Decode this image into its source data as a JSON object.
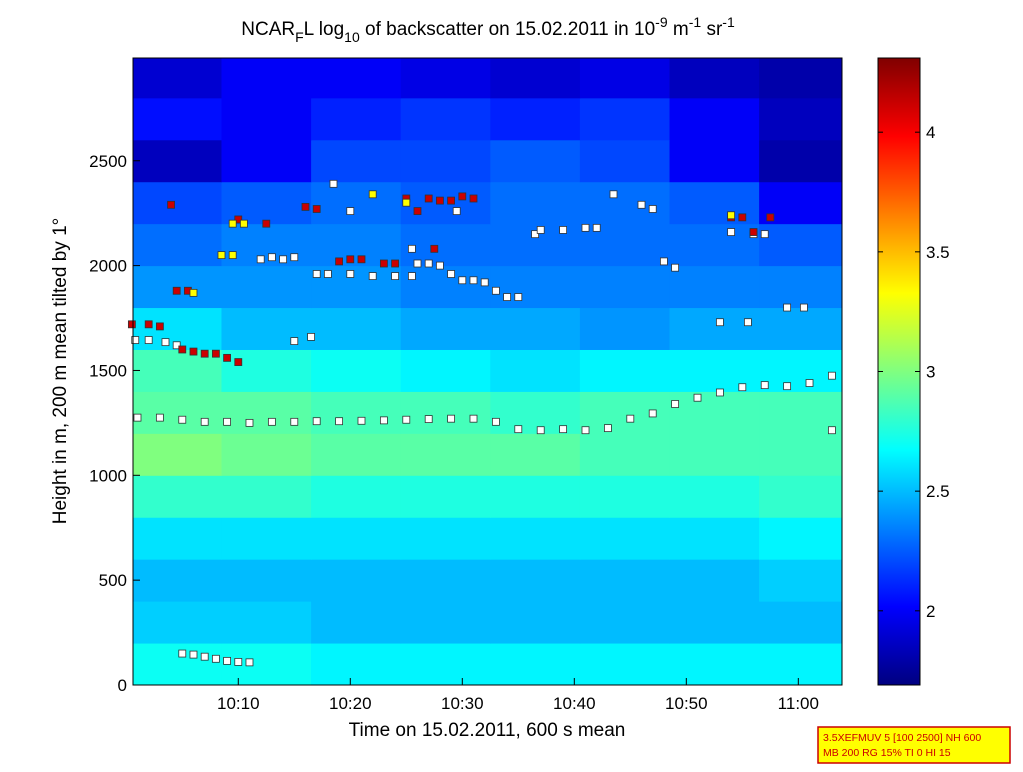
{
  "chart_data": {
    "type": "heatmap",
    "title": [
      "NCAR",
      "F",
      "L log",
      "10",
      " of backscatter on 15.02.2011 in 10",
      "-9",
      " m",
      "-1",
      " sr",
      "-1"
    ],
    "x_label": "Time on 15.02.2011, 600 s mean",
    "y_label": "Height in m, 200 m mean tilted by 1°",
    "xlim": [
      0.6,
      63.9
    ],
    "ylim": [
      0,
      2990
    ],
    "xticks": [
      {
        "value": 10,
        "label": "10:10"
      },
      {
        "value": 20,
        "label": "10:20"
      },
      {
        "value": 30,
        "label": "10:30"
      },
      {
        "value": 40,
        "label": "10:40"
      },
      {
        "value": 50,
        "label": "10:50"
      },
      {
        "value": 60,
        "label": "11:00"
      }
    ],
    "yticks": [
      0,
      500,
      1000,
      1500,
      2000,
      2500
    ],
    "colormap": "jet",
    "clim": [
      1.69,
      4.31
    ],
    "cticks": [
      2,
      2.5,
      3,
      3.5,
      4
    ],
    "x_bins": [
      0.6,
      8.5,
      16.5,
      24.5,
      32.5,
      40.5,
      48.5,
      56.5,
      63.9
    ],
    "y_bins": [
      0,
      200,
      400,
      600,
      800,
      1000,
      1200,
      1400,
      1600,
      1800,
      2000,
      2200,
      2400,
      2600,
      2800,
      2990
    ],
    "z": [
      [
        2.7,
        2.7,
        2.65,
        2.65,
        2.65,
        2.65,
        2.65,
        2.65
      ],
      [
        2.55,
        2.55,
        2.5,
        2.5,
        2.5,
        2.5,
        2.5,
        2.5
      ],
      [
        2.5,
        2.5,
        2.5,
        2.5,
        2.5,
        2.5,
        2.5,
        2.55
      ],
      [
        2.6,
        2.6,
        2.6,
        2.6,
        2.6,
        2.6,
        2.6,
        2.65
      ],
      [
        2.8,
        2.8,
        2.75,
        2.75,
        2.75,
        2.75,
        2.75,
        2.8
      ],
      [
        3.0,
        2.95,
        2.9,
        2.9,
        2.9,
        2.85,
        2.85,
        2.85
      ],
      [
        2.9,
        2.9,
        2.85,
        2.85,
        2.8,
        2.85,
        2.85,
        2.85
      ],
      [
        2.85,
        2.75,
        2.7,
        2.65,
        2.6,
        2.65,
        2.65,
        2.65
      ],
      [
        2.6,
        2.5,
        2.5,
        2.45,
        2.45,
        2.4,
        2.45,
        2.45
      ],
      [
        2.4,
        2.4,
        2.4,
        2.35,
        2.35,
        2.35,
        2.35,
        2.35
      ],
      [
        2.3,
        2.35,
        2.35,
        2.3,
        2.3,
        2.3,
        2.3,
        2.25
      ],
      [
        2.2,
        2.25,
        2.3,
        2.25,
        2.3,
        2.3,
        2.25,
        2.0
      ],
      [
        1.85,
        2.0,
        2.2,
        2.2,
        2.25,
        2.2,
        2.0,
        1.8
      ],
      [
        2.05,
        2.0,
        2.1,
        2.15,
        2.1,
        2.15,
        2.0,
        1.85
      ],
      [
        1.9,
        2.0,
        2.0,
        1.95,
        1.9,
        1.95,
        1.85,
        1.8
      ]
    ],
    "series": [
      {
        "color": "#ffffff",
        "x": [
          1,
          3,
          5,
          7,
          9,
          11,
          13,
          15,
          17,
          19,
          21,
          23,
          25,
          27,
          29,
          31,
          33,
          35,
          37,
          39,
          41,
          43,
          45,
          47,
          49,
          51,
          53,
          55,
          57,
          59,
          61,
          63,
          63,
          0.8,
          2,
          3.5,
          4.5,
          5,
          6,
          7,
          8,
          9,
          10,
          11,
          12,
          13,
          14,
          15,
          17,
          18,
          20,
          22,
          24,
          25.5,
          26,
          27,
          28,
          29,
          30,
          31,
          32,
          33,
          34,
          35,
          36.5,
          37,
          39,
          41,
          42,
          43.5,
          46,
          47,
          48,
          49,
          53,
          55.5,
          54,
          56,
          57,
          59,
          60.5,
          15,
          16.5,
          18.5,
          20,
          25.5,
          29.5
        ],
        "values": [
          1275,
          1275,
          1265,
          1255,
          1255,
          1250,
          1255,
          1255,
          1258,
          1258,
          1260,
          1262,
          1265,
          1268,
          1270,
          1270,
          1255,
          1220,
          1215,
          1220,
          1215,
          1225,
          1270,
          1295,
          1340,
          1370,
          1395,
          1420,
          1430,
          1425,
          1440,
          1475,
          1215,
          1645,
          1645,
          1635,
          1620,
          150,
          145,
          135,
          125,
          115,
          110,
          108,
          2030,
          2040,
          2030,
          2040,
          1960,
          1960,
          1960,
          1950,
          1950,
          1950,
          2010,
          2010,
          2000,
          1960,
          1930,
          1930,
          1920,
          1880,
          1850,
          1850,
          2150,
          2170,
          2170,
          2180,
          2180,
          2340,
          2290,
          2270,
          2020,
          1990,
          1730,
          1730,
          2160,
          2150,
          2150,
          1800,
          1800,
          1640,
          1660,
          2390,
          2260,
          2080,
          2260
        ]
      },
      {
        "color": "#cc0000",
        "x": [
          0.5,
          2,
          3,
          5,
          6,
          7,
          8,
          9,
          10,
          4,
          12.5,
          16,
          17,
          19,
          20,
          21,
          23,
          24,
          25,
          26,
          27,
          28,
          29,
          30,
          31,
          27.5,
          10,
          54,
          55,
          56,
          57.5,
          4.5,
          5.5
        ],
        "values": [
          1720,
          1720,
          1710,
          1600,
          1590,
          1580,
          1580,
          1560,
          1540,
          2290,
          2200,
          2280,
          2270,
          2020,
          2030,
          2030,
          2010,
          2010,
          2320,
          2260,
          2320,
          2310,
          2310,
          2330,
          2320,
          2080,
          2220,
          2230,
          2230,
          2160,
          2230,
          1880,
          1880
        ]
      },
      {
        "color": "#ffff00",
        "x": [
          9.5,
          8.5,
          9.5,
          10.5,
          6,
          22,
          25,
          54
        ],
        "values": [
          2200,
          2050,
          2050,
          2200,
          1870,
          2340,
          2300,
          2240
        ]
      }
    ],
    "footnote": [
      "3.5XEFMUV 5 [100 2500] NH 600",
      "MB 200 RG 15% TI 0 HI 15"
    ]
  }
}
